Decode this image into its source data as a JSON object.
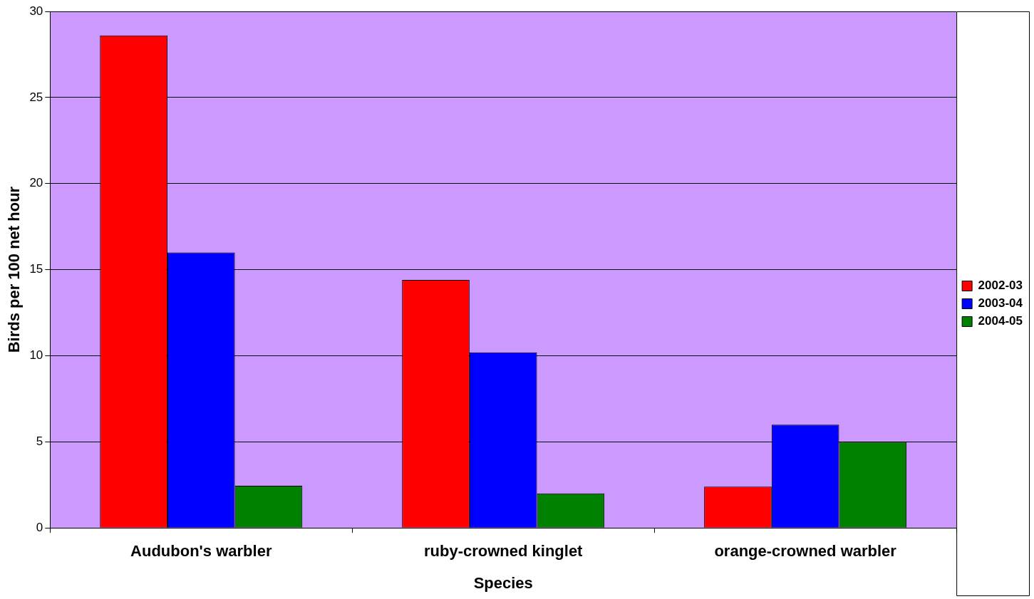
{
  "chart_data": {
    "type": "bar",
    "xlabel": "Species",
    "ylabel": "Birds per 100 net hour",
    "categories": [
      "Audubon's warbler",
      "ruby-crowned kinglet",
      "orange-crowned warbler"
    ],
    "series": [
      {
        "name": "2002-03",
        "color": "#ff0000",
        "values": [
          28.6,
          14.4,
          2.4
        ]
      },
      {
        "name": "2003-04",
        "color": "#0000ff",
        "values": [
          16.0,
          10.2,
          6.0
        ]
      },
      {
        "name": "2004-05",
        "color": "#008000",
        "values": [
          2.45,
          2.0,
          5.0
        ]
      }
    ],
    "ylim": [
      0,
      30
    ],
    "yticks": [
      0,
      5,
      10,
      15,
      20,
      25,
      30
    ],
    "grid": "y",
    "legend": "right"
  }
}
